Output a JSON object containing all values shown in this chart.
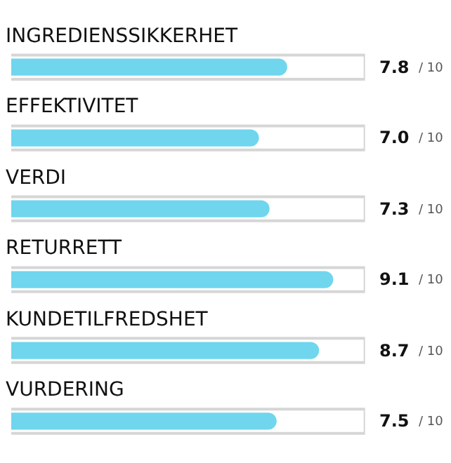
{
  "chart_data": {
    "type": "bar",
    "orientation": "horizontal",
    "categories": [
      "INGREDIENSSIKKERHET",
      "EFFEKTIVITET",
      "VERDI",
      "RETURRETT",
      "KUNDETILFREDSHET",
      "VURDERING"
    ],
    "values": [
      7.8,
      7.0,
      7.3,
      9.1,
      8.7,
      7.5
    ],
    "value_labels": [
      "7.8",
      "7.0",
      "7.3",
      "9.1",
      "8.7",
      "7.5"
    ],
    "annotations": [
      "/ 10",
      "/ 10",
      "/ 10",
      "/ 10",
      "/ 10",
      "/ 10"
    ],
    "color": "#6fd6ee",
    "xlim": [
      0,
      10
    ],
    "tick_labels": false,
    "grid": false,
    "legend": false
  }
}
